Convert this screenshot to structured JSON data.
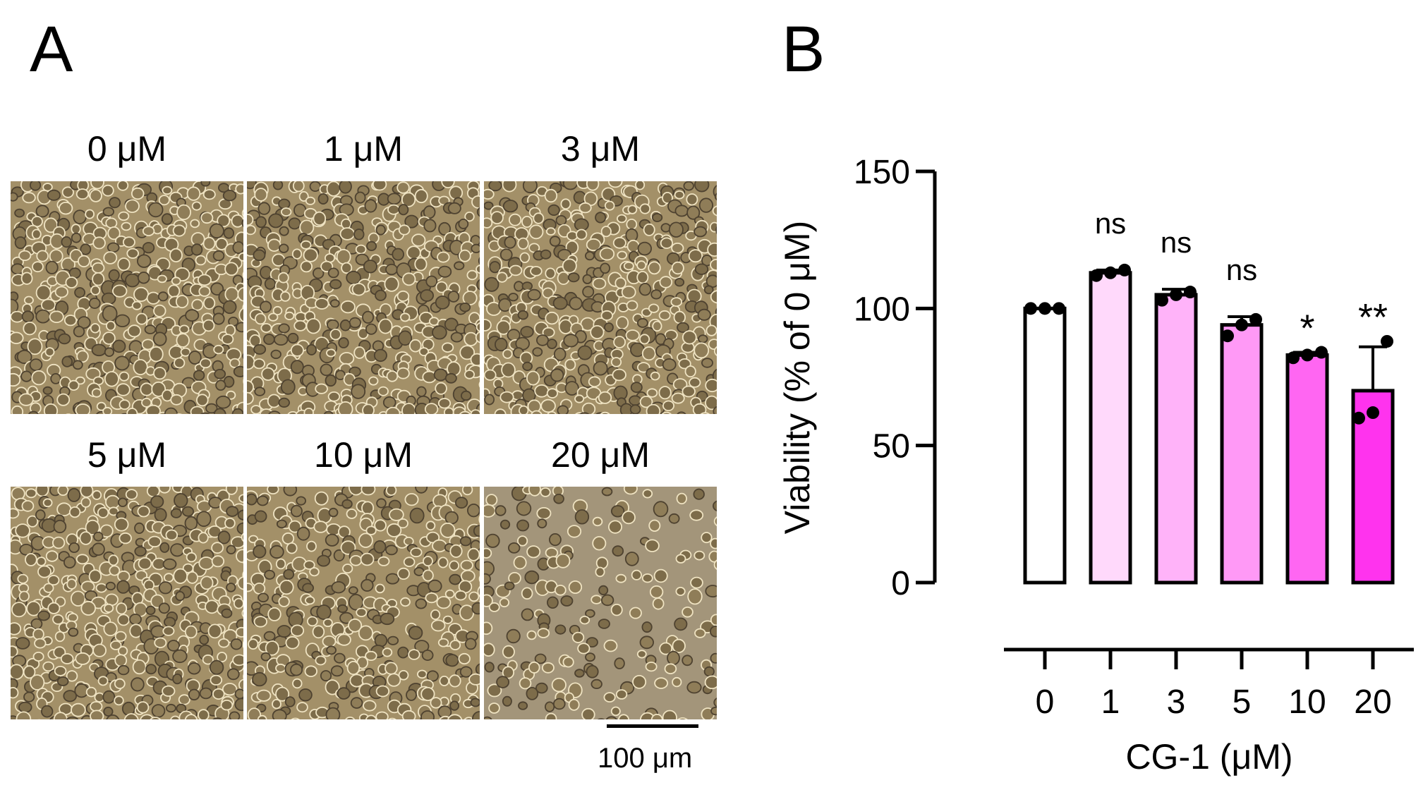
{
  "panel_a": {
    "letter": "A",
    "micrographs": [
      {
        "label": "0 μM",
        "density": 1.0
      },
      {
        "label": "1 μM",
        "density": 1.0
      },
      {
        "label": "3 μM",
        "density": 1.0
      },
      {
        "label": "5 μM",
        "density": 1.0
      },
      {
        "label": "10 μM",
        "density": 0.85
      },
      {
        "label": "20 μM",
        "density": 0.45
      }
    ],
    "scale_bar_label": "100 μm"
  },
  "panel_b": {
    "letter": "B"
  },
  "chart_data": {
    "type": "bar",
    "categories": [
      "0",
      "1",
      "3",
      "5",
      "10",
      "20"
    ],
    "values": [
      100,
      113,
      105,
      94,
      83,
      70
    ],
    "error_up": [
      0,
      1,
      2,
      3,
      1,
      16
    ],
    "points": [
      [
        100,
        100,
        100
      ],
      [
        112,
        113,
        114
      ],
      [
        103,
        105,
        106
      ],
      [
        90,
        94,
        96
      ],
      [
        82,
        83,
        84
      ],
      [
        60,
        62,
        88
      ]
    ],
    "significance": [
      "",
      "ns",
      "ns",
      "ns",
      "*",
      "**"
    ],
    "bar_colors": [
      "#ffffff",
      "#ffd9fb",
      "#ffb3f9",
      "#ff99f6",
      "#ff66f2",
      "#ff33ee"
    ],
    "xlabel": "CG-1 (μM)",
    "ylabel": "Viability (% of 0 μM)",
    "yticks": [
      0,
      50,
      100,
      150
    ],
    "ylim": [
      0,
      150
    ]
  }
}
